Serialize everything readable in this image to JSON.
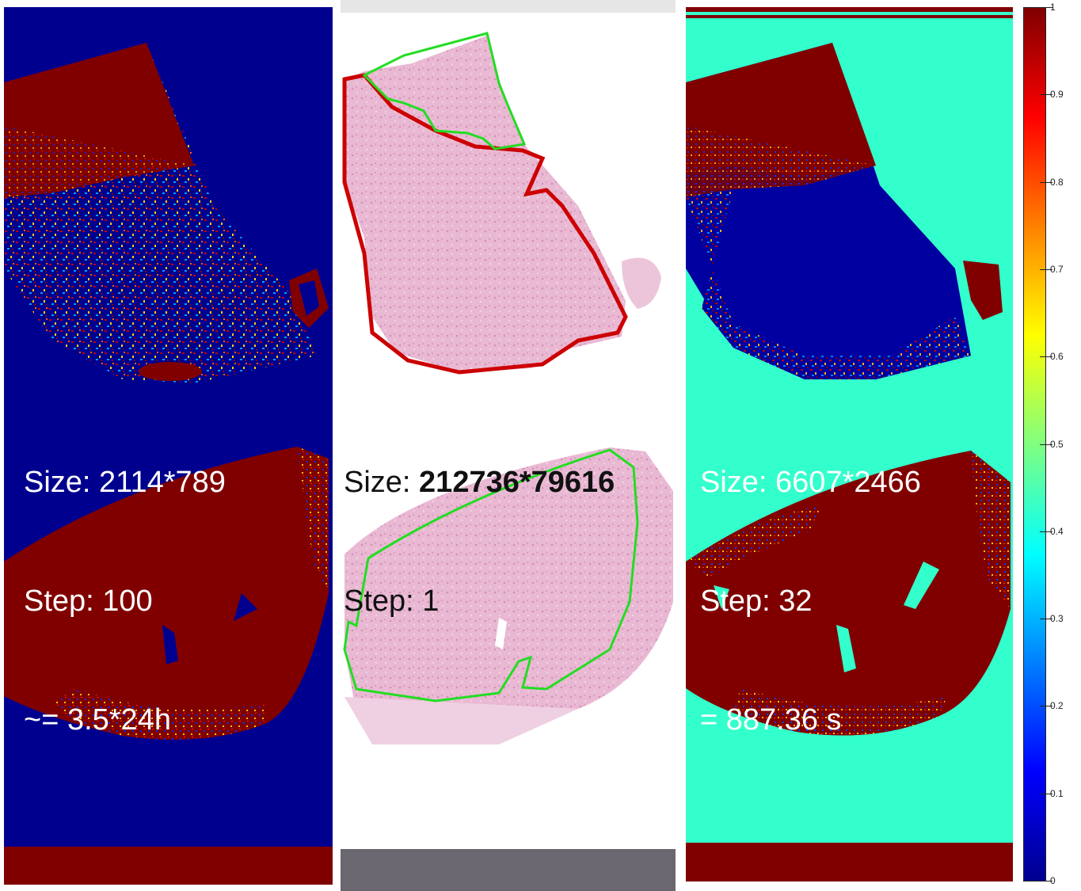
{
  "panels": {
    "left": {
      "size_label": "Size: 2114*789",
      "step_label": "Step: 100",
      "time_label": "~= 3.5*24h"
    },
    "middle": {
      "size_prefix": "Size: ",
      "size_value": "212736*79616",
      "step_label": "Step: 1"
    },
    "right": {
      "size_label": "Size: 6607*2466",
      "step_label": "Step: 32",
      "time_label": "= 887.36 s"
    }
  },
  "colorbar": {
    "min": 0,
    "max": 1,
    "tick_labels": [
      "1",
      "0.9",
      "0.8",
      "0.7",
      "0.6",
      "0.5",
      "0.4",
      "0.3",
      "0.2",
      "0.1",
      "0"
    ]
  },
  "colors": {
    "map_low": "#00008f",
    "map_high": "#800000",
    "map_mid": "#33ffcc",
    "annotation_red": "#cc0000",
    "annotation_green": "#22dd22",
    "tissue_pink": "#e9b9d3"
  }
}
